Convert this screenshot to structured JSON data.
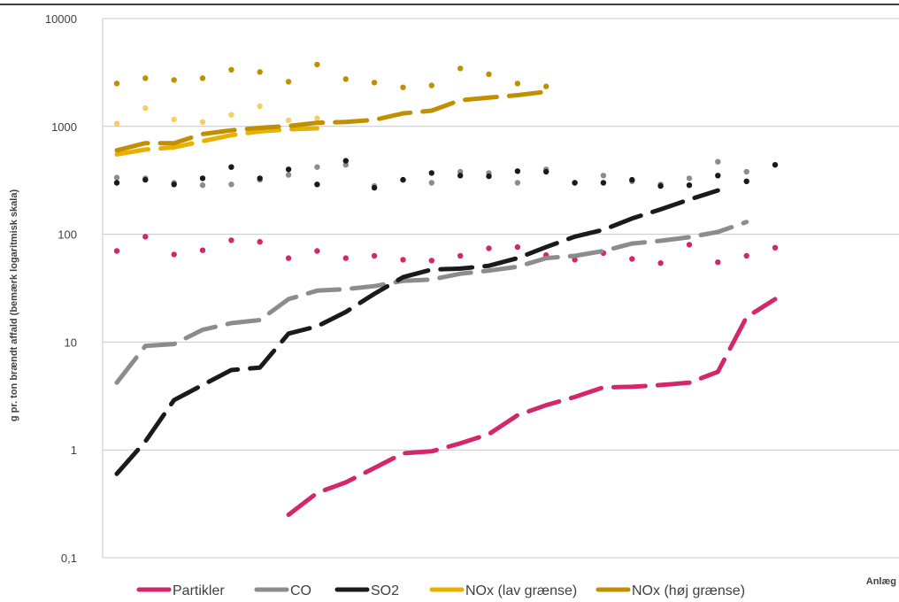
{
  "chart_data": {
    "type": "line",
    "ylabel": "g pr. ton brændt affald (bemærk logaritmisk skala)",
    "xlabel": "Anlæg",
    "y_scale": "log",
    "ylim": [
      0.1,
      10000
    ],
    "y_ticks": [
      0.1,
      1,
      10,
      100,
      1000,
      10000
    ],
    "y_tick_labels": [
      "0,1",
      "1",
      "10",
      "100",
      "1000",
      "10000"
    ],
    "grid": "horizontal",
    "legend_position": "bottom",
    "n_plants": 24,
    "series": [
      {
        "name": "Partikler",
        "color": "#d4266a",
        "dots": [
          70,
          95,
          65,
          71,
          88,
          85,
          60,
          70,
          60,
          63,
          58,
          57,
          63,
          74,
          76,
          64,
          58,
          67,
          59,
          54,
          80,
          55,
          63,
          75
        ],
        "line_x": [
          7,
          8,
          9,
          10,
          11,
          12,
          13,
          14,
          15,
          16,
          17,
          18,
          19,
          20,
          21,
          22,
          23,
          24
        ],
        "line": [
          0.25,
          0.4,
          0.5,
          0.68,
          0.93,
          0.97,
          1.15,
          1.4,
          2.1,
          2.6,
          3.1,
          3.8,
          3.85,
          4.0,
          4.2,
          5.3,
          17,
          25
        ]
      },
      {
        "name": "CO",
        "color": "#8c8c8c",
        "dots": [
          335,
          330,
          300,
          285,
          290,
          320,
          355,
          420,
          440,
          280,
          320,
          300,
          380,
          370,
          300,
          400,
          300,
          350,
          310,
          290,
          330,
          470,
          380
        ],
        "line": [
          4.2,
          9.2,
          9.6,
          13,
          15,
          16,
          25,
          30,
          31,
          33,
          37,
          38,
          43,
          46,
          50,
          60,
          63,
          70,
          82,
          87,
          94,
          105,
          130
        ]
      },
      {
        "name": "SO2",
        "color": "#1a1a1a",
        "dots": [
          300,
          320,
          290,
          330,
          420,
          330,
          400,
          290,
          480,
          270,
          320,
          370,
          350,
          345,
          385,
          380,
          300,
          300,
          320,
          280,
          285,
          350,
          310,
          440
        ],
        "line": [
          0.6,
          1.2,
          2.9,
          4,
          5.5,
          5.8,
          12,
          14,
          19,
          28,
          40,
          47,
          48,
          51,
          60,
          76,
          95,
          110,
          140,
          170,
          210,
          255
        ]
      },
      {
        "name": "NOx (lav grænse)",
        "color": "#e8b000",
        "dots": [
          1060,
          1480,
          1160,
          1100,
          1280,
          1540,
          1140,
          1190
        ],
        "line": [
          550,
          610,
          640,
          730,
          830,
          900,
          940,
          960
        ]
      },
      {
        "name": "NOx (høj grænse)",
        "color": "#c09000",
        "dots": [
          2500,
          2800,
          2700,
          2800,
          3350,
          3200,
          2600,
          3750,
          2750,
          2550,
          2300,
          2400,
          3450,
          3050,
          2500,
          2350
        ],
        "line": [
          600,
          700,
          700,
          850,
          920,
          970,
          1010,
          1080,
          1100,
          1150,
          1320,
          1400,
          1750,
          1850,
          1950,
          2100
        ]
      }
    ]
  }
}
